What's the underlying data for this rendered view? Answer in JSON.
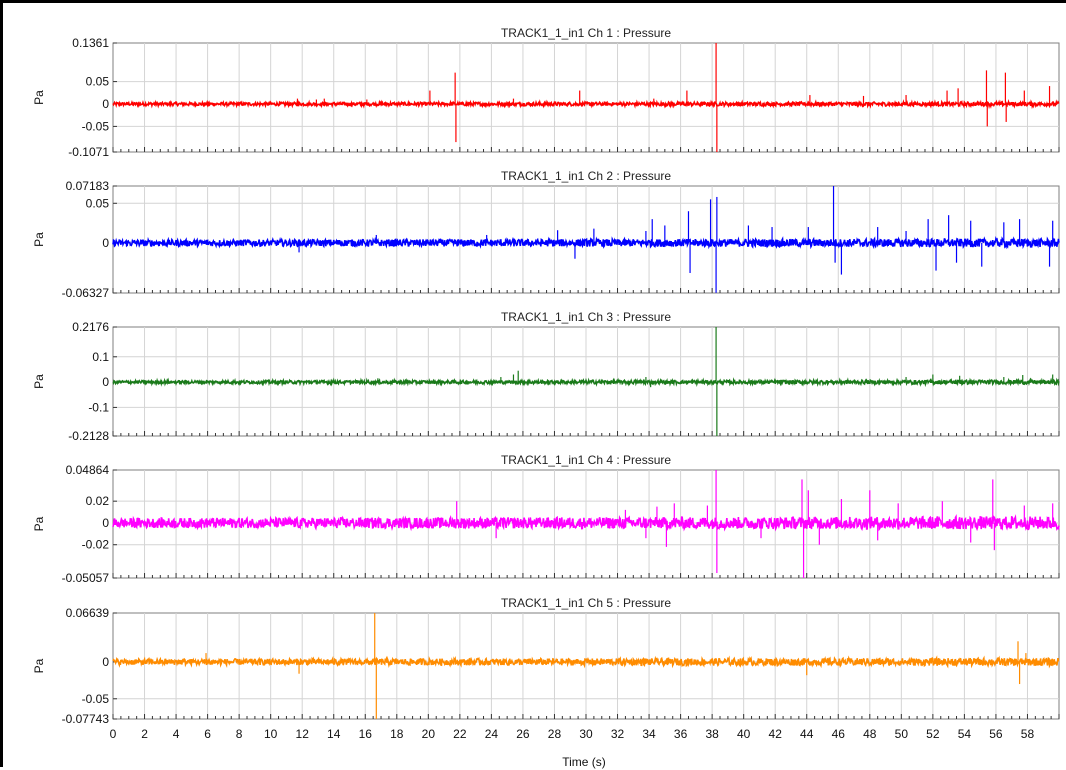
{
  "chart_data": [
    {
      "type": "line",
      "title": "TRACK1_1_in1  Ch 1 : Pressure",
      "ylabel": "Pa",
      "xlabel": "",
      "xlim": [
        0,
        60
      ],
      "ylim": [
        -0.1071,
        0.1361
      ],
      "ytick_labels": [
        "0.1361",
        "0.05",
        "0",
        "-0.05",
        "-0.1071"
      ],
      "yticks": [
        0.1361,
        0.05,
        0,
        -0.05,
        -0.1071
      ],
      "grid": true,
      "color": "#ff0000",
      "series": [
        {
          "noise": 0.0035,
          "spikes": [
            [
              1,
              0.004
            ],
            [
              2.6,
              0.005
            ],
            [
              5.2,
              0.006
            ],
            [
              11.7,
              0.012
            ],
            [
              12.9,
              0.01
            ],
            [
              13.4,
              0.012
            ],
            [
              16.1,
              0.01
            ],
            [
              20.1,
              0.03
            ],
            [
              21.7,
              0.07
            ],
            [
              21.75,
              -0.085
            ],
            [
              25.4,
              0.012
            ],
            [
              29.6,
              0.03
            ],
            [
              34.3,
              0.012
            ],
            [
              36.4,
              0.03
            ],
            [
              38.25,
              0.1361
            ],
            [
              38.3,
              -0.1071
            ],
            [
              44.2,
              0.02
            ],
            [
              47.6,
              0.018
            ],
            [
              50.3,
              0.02
            ],
            [
              52.9,
              0.03
            ],
            [
              53.6,
              0.035
            ],
            [
              55.4,
              0.075
            ],
            [
              55.45,
              -0.05
            ],
            [
              56.6,
              0.07
            ],
            [
              56.65,
              -0.04
            ],
            [
              57.8,
              0.03
            ],
            [
              59.4,
              0.04
            ]
          ]
        }
      ]
    },
    {
      "type": "line",
      "title": "TRACK1_1_in1  Ch 2 : Pressure",
      "ylabel": "Pa",
      "xlabel": "",
      "xlim": [
        0,
        60
      ],
      "ylim": [
        -0.06327,
        0.07183
      ],
      "ytick_labels": [
        "0.07183",
        "0.05",
        "0",
        "-0.06327"
      ],
      "yticks": [
        0.07183,
        0.05,
        0,
        -0.06327
      ],
      "grid": true,
      "color": "#0000ff",
      "series": [
        {
          "noise": 0.004,
          "spikes": [
            [
              11.8,
              -0.012
            ],
            [
              16.7,
              0.01
            ],
            [
              23.7,
              0.01
            ],
            [
              28.2,
              0.016
            ],
            [
              29.3,
              -0.02
            ],
            [
              30.5,
              0.018
            ],
            [
              33.8,
              0.015
            ],
            [
              34.2,
              0.03
            ],
            [
              35,
              0.022
            ],
            [
              36.5,
              0.04
            ],
            [
              36.6,
              -0.038
            ],
            [
              37.9,
              0.055
            ],
            [
              38.25,
              -0.063
            ],
            [
              38.3,
              0.058
            ],
            [
              40.3,
              0.022
            ],
            [
              41.8,
              0.02
            ],
            [
              44.1,
              0.02
            ],
            [
              45.7,
              0.07183
            ],
            [
              45.8,
              -0.025
            ],
            [
              46.2,
              -0.04
            ],
            [
              48.5,
              0.02
            ],
            [
              50.3,
              0.015
            ],
            [
              51.7,
              0.03
            ],
            [
              52.2,
              -0.035
            ],
            [
              53,
              0.035
            ],
            [
              53.5,
              -0.025
            ],
            [
              54.4,
              0.028
            ],
            [
              55.1,
              -0.03
            ],
            [
              56.5,
              0.026
            ],
            [
              57.5,
              0.03
            ],
            [
              59.4,
              -0.03
            ],
            [
              59.6,
              0.028
            ]
          ]
        }
      ]
    },
    {
      "type": "line",
      "title": "TRACK1_1_in1  Ch 3 : Pressure",
      "ylabel": "Pa",
      "xlabel": "",
      "xlim": [
        0,
        60
      ],
      "ylim": [
        -0.2128,
        0.2176
      ],
      "ytick_labels": [
        "0.2176",
        "0.1",
        "0",
        "-0.1",
        "-0.2128"
      ],
      "yticks": [
        0.2176,
        0.1,
        0,
        -0.1,
        -0.2128
      ],
      "grid": true,
      "color": "#1a7a1a",
      "series": [
        {
          "noise": 0.006,
          "spikes": [
            [
              16.8,
              0.015
            ],
            [
              24.6,
              0.02
            ],
            [
              25.4,
              0.03
            ],
            [
              25.7,
              0.045
            ],
            [
              33.8,
              0.02
            ],
            [
              34.1,
              -0.02
            ],
            [
              38.25,
              0.2176
            ],
            [
              38.3,
              -0.2128
            ],
            [
              50.3,
              0.02
            ],
            [
              52,
              0.03
            ],
            [
              53.7,
              0.025
            ],
            [
              56.5,
              0.02
            ],
            [
              57.7,
              0.028
            ],
            [
              59.6,
              0.03
            ]
          ]
        }
      ]
    },
    {
      "type": "line",
      "title": "TRACK1_1_in1  Ch 4 : Pressure",
      "ylabel": "Pa",
      "xlabel": "",
      "xlim": [
        0,
        60
      ],
      "ylim": [
        -0.05057,
        0.04864
      ],
      "ytick_labels": [
        "0.04864",
        "0.02",
        "0",
        "-0.02",
        "-0.05057"
      ],
      "yticks": [
        0.04864,
        0.02,
        0,
        -0.02,
        -0.05057
      ],
      "grid": true,
      "color": "#ff00ff",
      "series": [
        {
          "noise": 0.0045,
          "spikes": [
            [
              21.8,
              0.02
            ],
            [
              24.3,
              -0.014
            ],
            [
              32.5,
              0.012
            ],
            [
              33.8,
              -0.014
            ],
            [
              34.5,
              0.015
            ],
            [
              35.1,
              -0.022
            ],
            [
              35.6,
              0.018
            ],
            [
              37.7,
              0.016
            ],
            [
              38.25,
              0.04864
            ],
            [
              38.3,
              -0.046
            ],
            [
              41.1,
              -0.014
            ],
            [
              43.7,
              0.04
            ],
            [
              43.8,
              -0.05057
            ],
            [
              44.1,
              0.03
            ],
            [
              44.8,
              -0.02
            ],
            [
              46.2,
              0.022
            ],
            [
              48,
              0.03
            ],
            [
              48.5,
              -0.016
            ],
            [
              49.8,
              0.018
            ],
            [
              52.6,
              0.02
            ],
            [
              54.4,
              -0.018
            ],
            [
              55.8,
              0.04
            ],
            [
              55.9,
              -0.025
            ],
            [
              57.8,
              0.016
            ],
            [
              59.6,
              0.018
            ]
          ]
        }
      ]
    },
    {
      "type": "line",
      "title": "TRACK1_1_in1  Ch 5 : Pressure",
      "ylabel": "Pa",
      "xlabel": "Time (s)",
      "xlim": [
        0,
        60
      ],
      "ylim": [
        -0.07743,
        0.06639
      ],
      "ytick_labels": [
        "0.06639",
        "0",
        "-0.05",
        "-0.07743"
      ],
      "yticks": [
        0.06639,
        0,
        -0.05,
        -0.07743
      ],
      "grid": true,
      "color": "#ff8c00",
      "series": [
        {
          "noise": 0.004,
          "spikes": [
            [
              5.9,
              0.012
            ],
            [
              11.8,
              -0.016
            ],
            [
              16.6,
              0.06639
            ],
            [
              16.7,
              -0.07743
            ],
            [
              44,
              -0.018
            ],
            [
              57.4,
              0.028
            ],
            [
              57.5,
              -0.03
            ],
            [
              57.9,
              0.012
            ]
          ]
        }
      ]
    }
  ],
  "x_axis": {
    "label": "Time (s)",
    "tick_labels": [
      "0",
      "2",
      "4",
      "6",
      "8",
      "10",
      "12",
      "14",
      "16",
      "18",
      "20",
      "22",
      "24",
      "26",
      "28",
      "30",
      "32",
      "34",
      "36",
      "38",
      "40",
      "42",
      "44",
      "46",
      "48",
      "50",
      "52",
      "54",
      "56",
      "58"
    ]
  }
}
